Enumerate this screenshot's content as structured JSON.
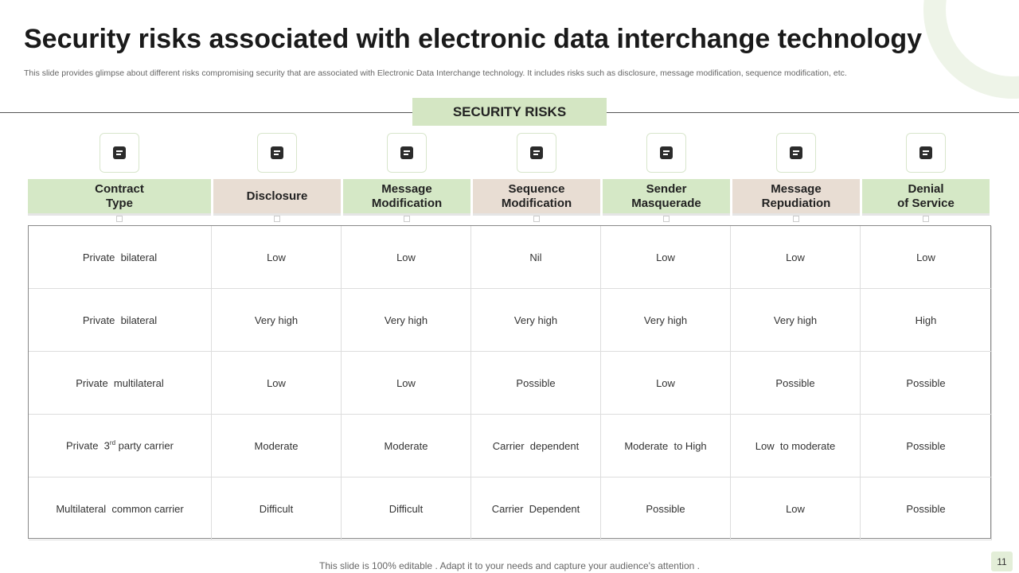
{
  "header": {
    "title": "Security risks associated with electronic data interchange technology",
    "subtitle": "This slide provides glimpse about different risks compromising security that are associated with Electronic Data Interchange technology. It includes risks such as disclosure, message modification, sequence modification, etc."
  },
  "banner": "SECURITY RISKS",
  "table": {
    "columns": [
      "Contract\nType",
      "Disclosure",
      "Message\nModification",
      "Sequence\nModification",
      "Sender\nMasquerade",
      "Message\nRepudiation",
      "Denial\nof Service"
    ],
    "rows": [
      [
        "Private  bilateral",
        "Low",
        "Low",
        "Nil",
        "Low",
        "Low",
        "Low"
      ],
      [
        "Private  bilateral",
        "Very high",
        "Very high",
        "Very high",
        "Very high",
        "Very high",
        "High"
      ],
      [
        "Private  multilateral",
        "Low",
        "Low",
        "Possible",
        "Low",
        "Possible",
        "Possible"
      ],
      [
        {
          "before": "Private  3",
          "sup": "rd",
          "after": " party carrier"
        },
        "Moderate",
        "Moderate",
        "Carrier  dependent",
        "Moderate  to High",
        "Low  to moderate",
        "Possible"
      ],
      [
        "Multilateral  common carrier",
        "Difficult",
        "Difficult",
        "Carrier  Dependent",
        "Possible",
        "Low",
        "Possible"
      ]
    ]
  },
  "footer": "This slide is 100% editable . Adapt it to your needs and capture your audience's attention .",
  "page_number": "11"
}
